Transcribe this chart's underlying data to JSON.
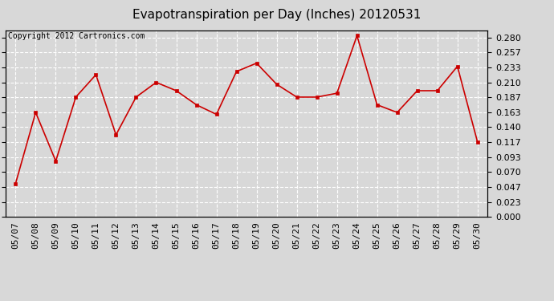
{
  "title": "Evapotranspiration per Day (Inches) 20120531",
  "copyright_text": "Copyright 2012 Cartronics.com",
  "dates": [
    "05/07",
    "05/08",
    "05/09",
    "05/10",
    "05/11",
    "05/12",
    "05/13",
    "05/14",
    "05/15",
    "05/16",
    "05/17",
    "05/18",
    "05/19",
    "05/20",
    "05/21",
    "05/22",
    "05/23",
    "05/24",
    "05/25",
    "05/26",
    "05/27",
    "05/28",
    "05/29",
    "05/30"
  ],
  "values": [
    0.052,
    0.163,
    0.087,
    0.187,
    0.222,
    0.128,
    0.187,
    0.21,
    0.197,
    0.175,
    0.16,
    0.227,
    0.24,
    0.207,
    0.187,
    0.187,
    0.193,
    0.283,
    0.175,
    0.163,
    0.197,
    0.197,
    0.235,
    0.117
  ],
  "line_color": "#cc0000",
  "marker": "s",
  "marker_size": 3,
  "marker_color": "#cc0000",
  "ylim": [
    0.0,
    0.2917
  ],
  "yticks": [
    0.0,
    0.023,
    0.047,
    0.07,
    0.093,
    0.117,
    0.14,
    0.163,
    0.187,
    0.21,
    0.233,
    0.257,
    0.28
  ],
  "background_color": "#d8d8d8",
  "plot_bg_color": "#d8d8d8",
  "title_fontsize": 11,
  "copyright_fontsize": 7,
  "tick_fontsize": 8,
  "grid_color": "#ffffff",
  "grid_linestyle": "--"
}
